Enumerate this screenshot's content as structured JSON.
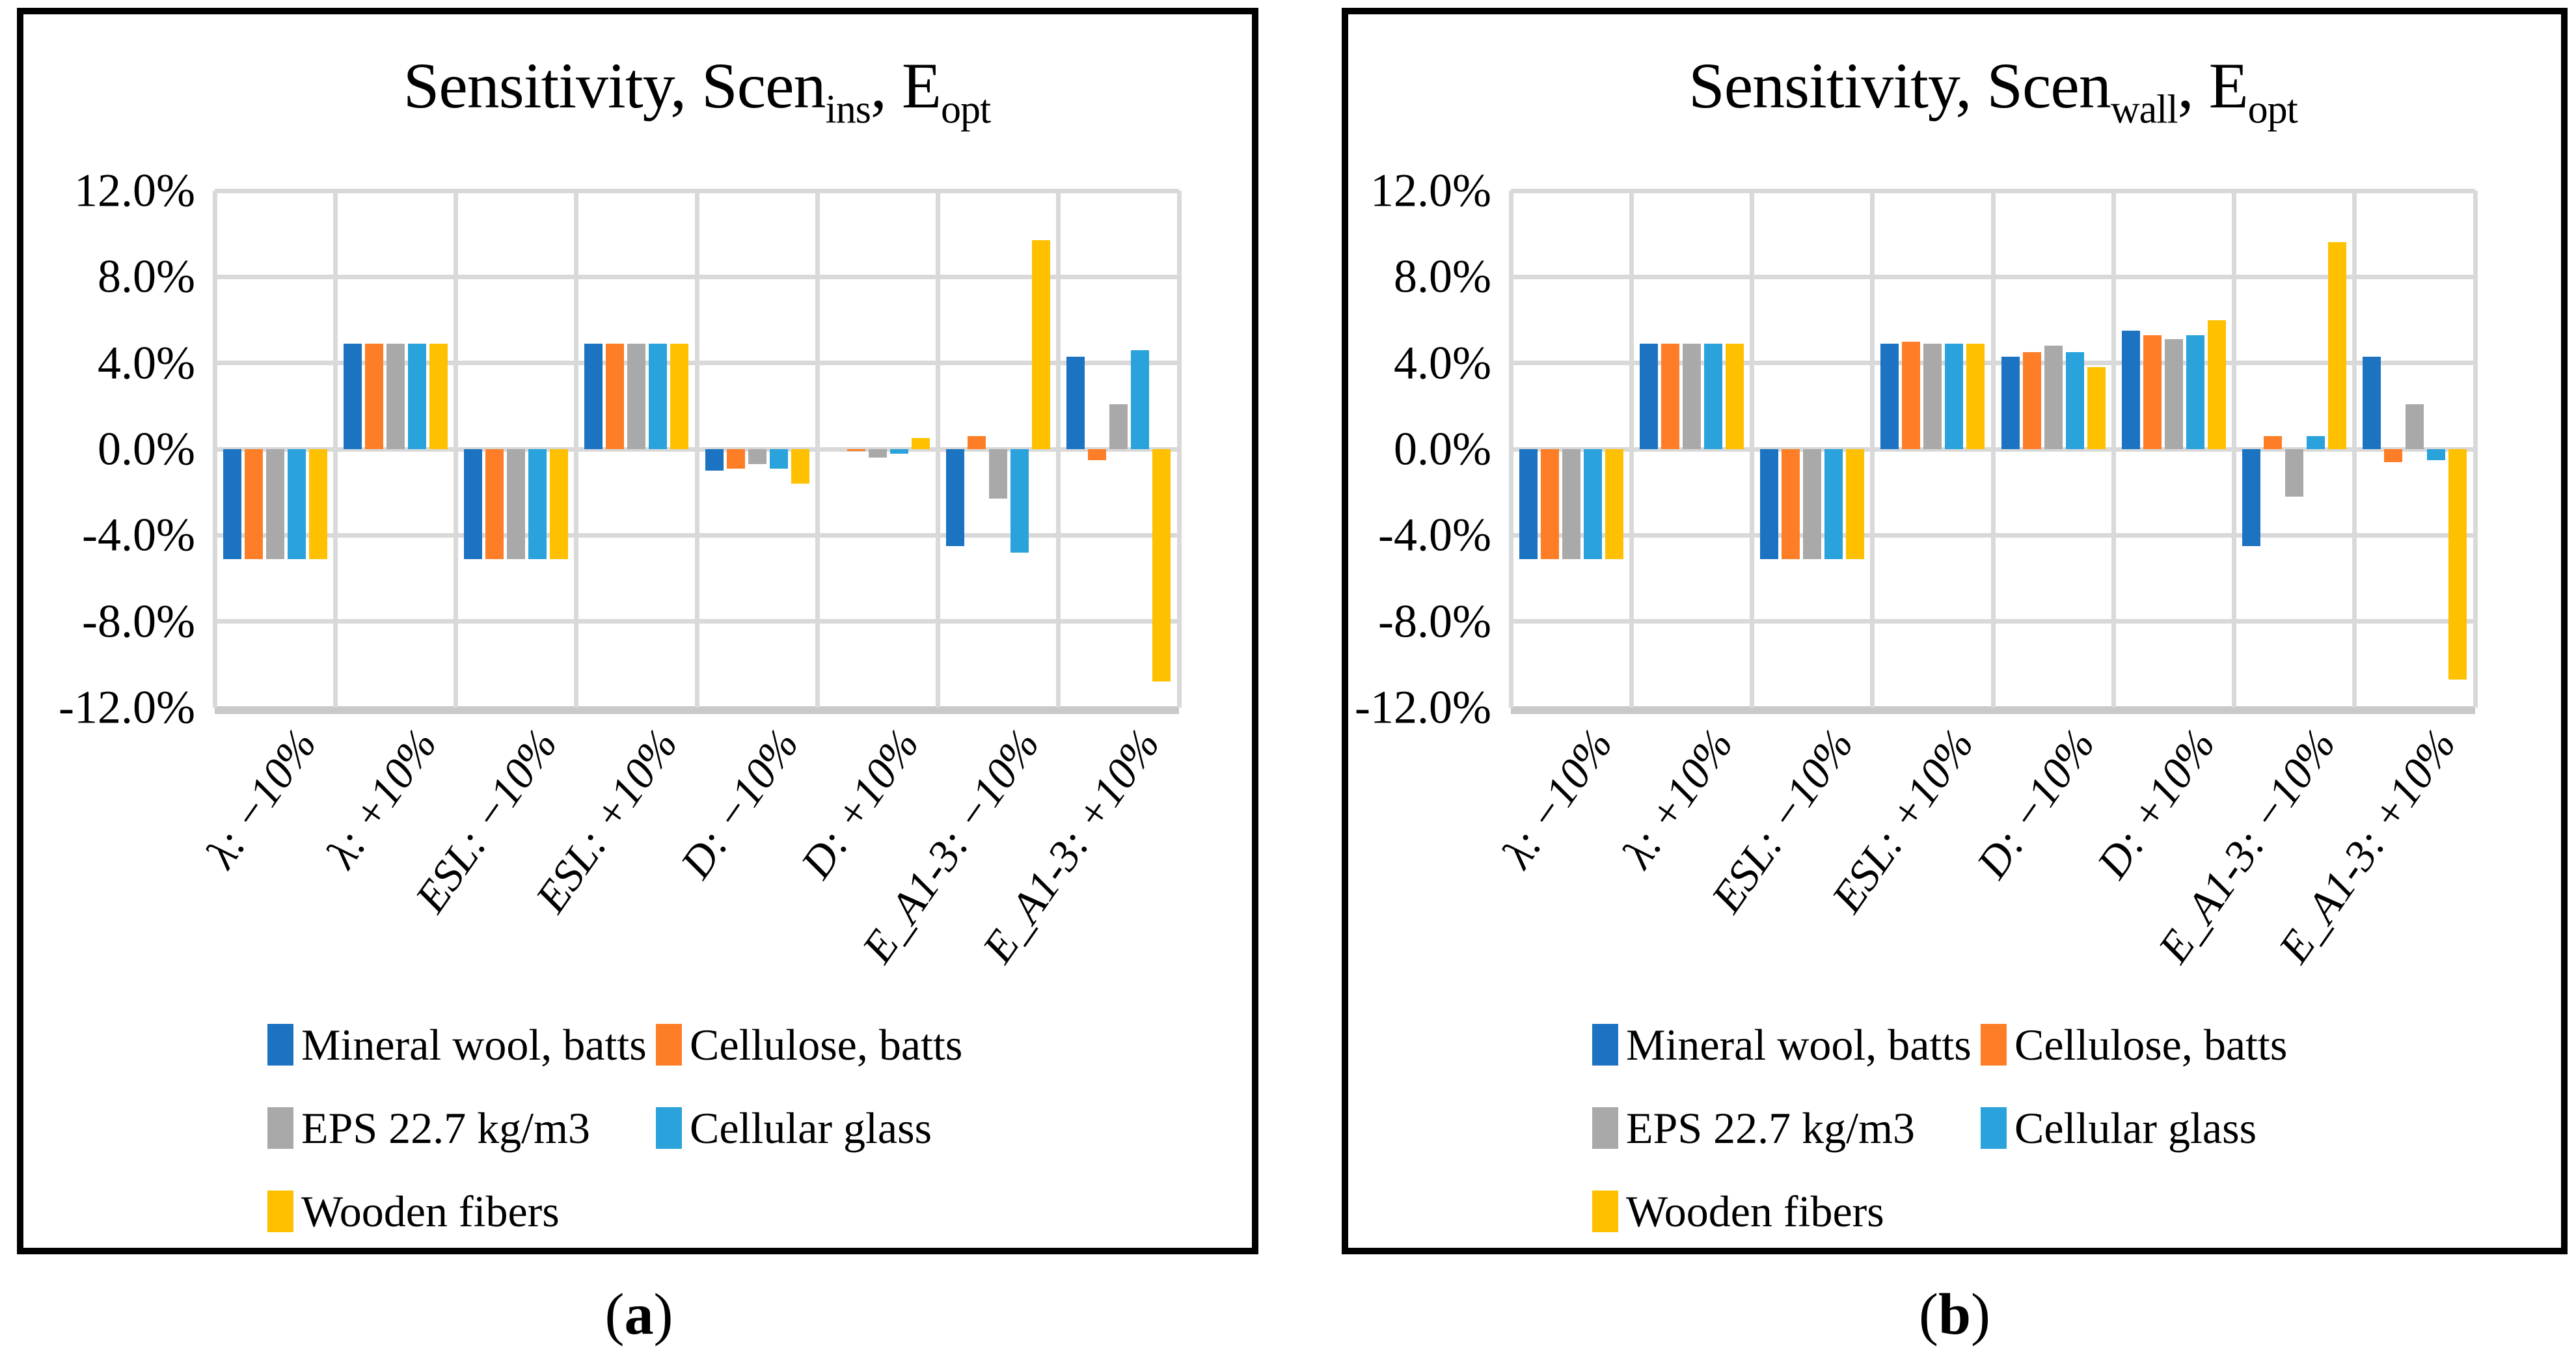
{
  "chart_data": [
    {
      "type": "bar",
      "panel": "a",
      "title": {
        "text1": "Sensitivity, Scen",
        "sub1": "ins",
        "text2": ", E",
        "sub2": "opt"
      },
      "caption": {
        "open": "(",
        "label": "a",
        "close": ")"
      },
      "categories": [
        "λ: −10%",
        "λ: +10%",
        "ESL: −10%",
        "ESL: +10%",
        "D: −10%",
        "D: +10%",
        "E_A1-3: −10%",
        "E_A1-3: +10%"
      ],
      "series": [
        {
          "name": "Mineral wool, batts",
          "color": "#1B73C2",
          "values": [
            -5.1,
            4.9,
            -5.1,
            4.9,
            -1.0,
            0.0,
            -4.5,
            4.3
          ]
        },
        {
          "name": "Cellulose, batts",
          "color": "#FD7E27",
          "values": [
            -5.1,
            4.9,
            -5.1,
            4.9,
            -0.9,
            -0.1,
            0.6,
            -0.5
          ]
        },
        {
          "name": "EPS 22.7 kg/m3",
          "color": "#A9A9A9",
          "values": [
            -5.1,
            4.9,
            -5.1,
            4.9,
            -0.7,
            -0.4,
            -2.3,
            2.1
          ]
        },
        {
          "name": "Cellular glass",
          "color": "#2AA2DC",
          "values": [
            -5.1,
            4.9,
            -5.1,
            4.9,
            -0.9,
            -0.2,
            -4.8,
            4.6
          ]
        },
        {
          "name": "Wooden fibers",
          "color": "#FFC000",
          "values": [
            -5.1,
            4.9,
            -5.1,
            4.9,
            -1.6,
            0.5,
            9.7,
            -10.8
          ]
        }
      ],
      "ylim": [
        -12,
        12
      ],
      "ytick_step": 4,
      "ytick_labels": [
        "12.0%",
        "8.0%",
        "4.0%",
        "0.0%",
        "-4.0%",
        "-8.0%",
        "-12.0%"
      ],
      "grid": true,
      "legend_position": "bottom",
      "xlabel": "",
      "ylabel": ""
    },
    {
      "type": "bar",
      "panel": "b",
      "title": {
        "text1": "Sensitivity, Scen",
        "sub1": "wall",
        "text2": ", E",
        "sub2": "opt"
      },
      "caption": {
        "open": "(",
        "label": "b",
        "close": ")"
      },
      "categories": [
        "λ: −10%",
        "λ: +10%",
        "ESL: −10%",
        "ESL: +10%",
        "D: −10%",
        "D: +10%",
        "E_A1-3: −10%",
        "E_A1-3: +10%"
      ],
      "series": [
        {
          "name": "Mineral wool, batts",
          "color": "#1B73C2",
          "values": [
            -5.1,
            4.9,
            -5.1,
            4.9,
            4.3,
            5.5,
            -4.5,
            4.3
          ]
        },
        {
          "name": "Cellulose, batts",
          "color": "#FD7E27",
          "values": [
            -5.1,
            4.9,
            -5.1,
            5.0,
            4.5,
            5.3,
            0.6,
            -0.6
          ]
        },
        {
          "name": "EPS 22.7 kg/m3",
          "color": "#A9A9A9",
          "values": [
            -5.1,
            4.9,
            -5.1,
            4.9,
            4.8,
            5.1,
            -2.2,
            2.1
          ]
        },
        {
          "name": "Cellular glass",
          "color": "#2AA2DC",
          "values": [
            -5.1,
            4.9,
            -5.1,
            4.9,
            4.5,
            5.3,
            0.6,
            -0.5
          ]
        },
        {
          "name": "Wooden fibers",
          "color": "#FFC000",
          "values": [
            -5.1,
            4.9,
            -5.1,
            4.9,
            3.8,
            6.0,
            9.6,
            -10.7
          ]
        }
      ],
      "ylim": [
        -12,
        12
      ],
      "ytick_step": 4,
      "ytick_labels": [
        "12.0%",
        "8.0%",
        "4.0%",
        "0.0%",
        "-4.0%",
        "-8.0%",
        "-12.0%"
      ],
      "grid": true,
      "legend_position": "bottom",
      "xlabel": "",
      "ylabel": ""
    }
  ],
  "grid_color": "#D9D9D9",
  "axis_bottom_color": "#C9C9C9"
}
